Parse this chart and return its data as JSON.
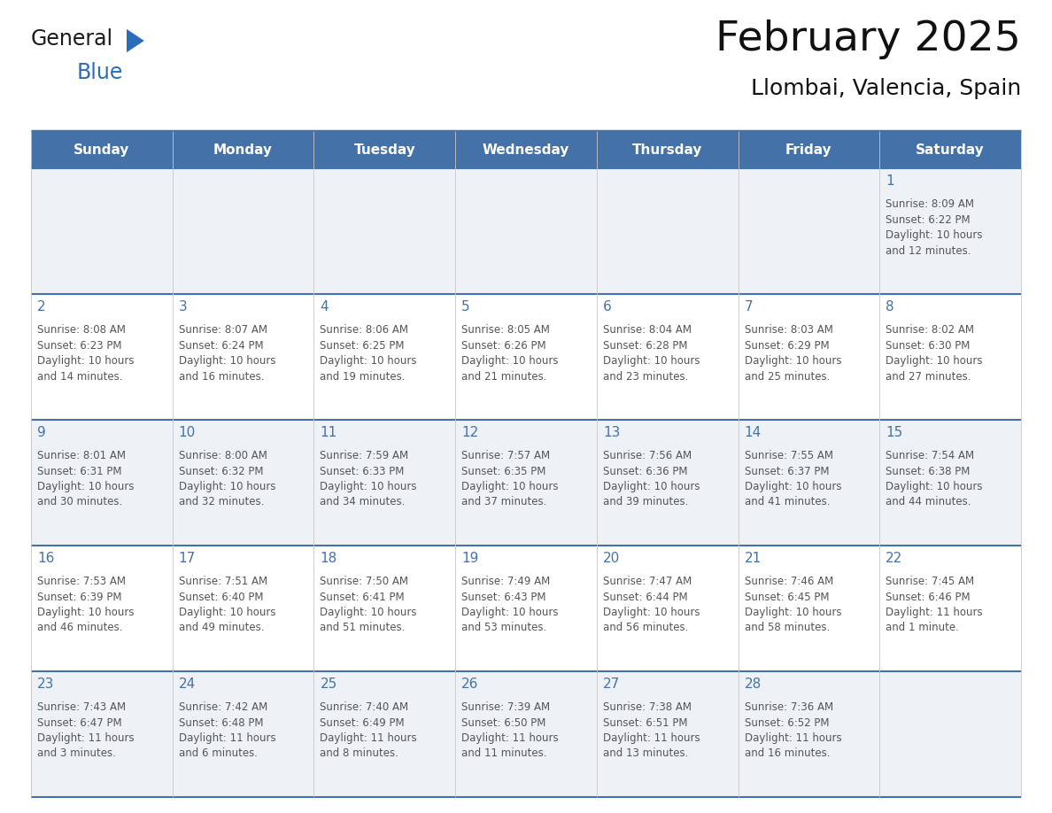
{
  "title": "February 2025",
  "subtitle": "Llombai, Valencia, Spain",
  "header_bg": "#4472a8",
  "header_text_color": "#ffffff",
  "cell_bg_even": "#eef2f7",
  "cell_bg_odd": "#ffffff",
  "border_color": "#4472a8",
  "day_number_color": "#4472a8",
  "day_text_color": "#555555",
  "logo_text_color": "#1a1a1a",
  "logo_blue_color": "#2a6eba",
  "days_of_week": [
    "Sunday",
    "Monday",
    "Tuesday",
    "Wednesday",
    "Thursday",
    "Friday",
    "Saturday"
  ],
  "calendar_data": [
    [
      null,
      null,
      null,
      null,
      null,
      null,
      {
        "day": "1",
        "sunrise": "8:09 AM",
        "sunset": "6:22 PM",
        "daylight": "10 hours",
        "daylight2": "and 12 minutes."
      }
    ],
    [
      {
        "day": "2",
        "sunrise": "8:08 AM",
        "sunset": "6:23 PM",
        "daylight": "10 hours",
        "daylight2": "and 14 minutes."
      },
      {
        "day": "3",
        "sunrise": "8:07 AM",
        "sunset": "6:24 PM",
        "daylight": "10 hours",
        "daylight2": "and 16 minutes."
      },
      {
        "day": "4",
        "sunrise": "8:06 AM",
        "sunset": "6:25 PM",
        "daylight": "10 hours",
        "daylight2": "and 19 minutes."
      },
      {
        "day": "5",
        "sunrise": "8:05 AM",
        "sunset": "6:26 PM",
        "daylight": "10 hours",
        "daylight2": "and 21 minutes."
      },
      {
        "day": "6",
        "sunrise": "8:04 AM",
        "sunset": "6:28 PM",
        "daylight": "10 hours",
        "daylight2": "and 23 minutes."
      },
      {
        "day": "7",
        "sunrise": "8:03 AM",
        "sunset": "6:29 PM",
        "daylight": "10 hours",
        "daylight2": "and 25 minutes."
      },
      {
        "day": "8",
        "sunrise": "8:02 AM",
        "sunset": "6:30 PM",
        "daylight": "10 hours",
        "daylight2": "and 27 minutes."
      }
    ],
    [
      {
        "day": "9",
        "sunrise": "8:01 AM",
        "sunset": "6:31 PM",
        "daylight": "10 hours",
        "daylight2": "and 30 minutes."
      },
      {
        "day": "10",
        "sunrise": "8:00 AM",
        "sunset": "6:32 PM",
        "daylight": "10 hours",
        "daylight2": "and 32 minutes."
      },
      {
        "day": "11",
        "sunrise": "7:59 AM",
        "sunset": "6:33 PM",
        "daylight": "10 hours",
        "daylight2": "and 34 minutes."
      },
      {
        "day": "12",
        "sunrise": "7:57 AM",
        "sunset": "6:35 PM",
        "daylight": "10 hours",
        "daylight2": "and 37 minutes."
      },
      {
        "day": "13",
        "sunrise": "7:56 AM",
        "sunset": "6:36 PM",
        "daylight": "10 hours",
        "daylight2": "and 39 minutes."
      },
      {
        "day": "14",
        "sunrise": "7:55 AM",
        "sunset": "6:37 PM",
        "daylight": "10 hours",
        "daylight2": "and 41 minutes."
      },
      {
        "day": "15",
        "sunrise": "7:54 AM",
        "sunset": "6:38 PM",
        "daylight": "10 hours",
        "daylight2": "and 44 minutes."
      }
    ],
    [
      {
        "day": "16",
        "sunrise": "7:53 AM",
        "sunset": "6:39 PM",
        "daylight": "10 hours",
        "daylight2": "and 46 minutes."
      },
      {
        "day": "17",
        "sunrise": "7:51 AM",
        "sunset": "6:40 PM",
        "daylight": "10 hours",
        "daylight2": "and 49 minutes."
      },
      {
        "day": "18",
        "sunrise": "7:50 AM",
        "sunset": "6:41 PM",
        "daylight": "10 hours",
        "daylight2": "and 51 minutes."
      },
      {
        "day": "19",
        "sunrise": "7:49 AM",
        "sunset": "6:43 PM",
        "daylight": "10 hours",
        "daylight2": "and 53 minutes."
      },
      {
        "day": "20",
        "sunrise": "7:47 AM",
        "sunset": "6:44 PM",
        "daylight": "10 hours",
        "daylight2": "and 56 minutes."
      },
      {
        "day": "21",
        "sunrise": "7:46 AM",
        "sunset": "6:45 PM",
        "daylight": "10 hours",
        "daylight2": "and 58 minutes."
      },
      {
        "day": "22",
        "sunrise": "7:45 AM",
        "sunset": "6:46 PM",
        "daylight": "11 hours",
        "daylight2": "and 1 minute."
      }
    ],
    [
      {
        "day": "23",
        "sunrise": "7:43 AM",
        "sunset": "6:47 PM",
        "daylight": "11 hours",
        "daylight2": "and 3 minutes."
      },
      {
        "day": "24",
        "sunrise": "7:42 AM",
        "sunset": "6:48 PM",
        "daylight": "11 hours",
        "daylight2": "and 6 minutes."
      },
      {
        "day": "25",
        "sunrise": "7:40 AM",
        "sunset": "6:49 PM",
        "daylight": "11 hours",
        "daylight2": "and 8 minutes."
      },
      {
        "day": "26",
        "sunrise": "7:39 AM",
        "sunset": "6:50 PM",
        "daylight": "11 hours",
        "daylight2": "and 11 minutes."
      },
      {
        "day": "27",
        "sunrise": "7:38 AM",
        "sunset": "6:51 PM",
        "daylight": "11 hours",
        "daylight2": "and 13 minutes."
      },
      {
        "day": "28",
        "sunrise": "7:36 AM",
        "sunset": "6:52 PM",
        "daylight": "11 hours",
        "daylight2": "and 16 minutes."
      },
      null
    ]
  ],
  "fig_width": 11.88,
  "fig_height": 9.18,
  "dpi": 100,
  "logo_general_fontsize": 17,
  "logo_blue_fontsize": 17,
  "title_fontsize": 34,
  "subtitle_fontsize": 18,
  "dow_fontsize": 11,
  "day_num_fontsize": 11,
  "cell_text_fontsize": 8.5
}
